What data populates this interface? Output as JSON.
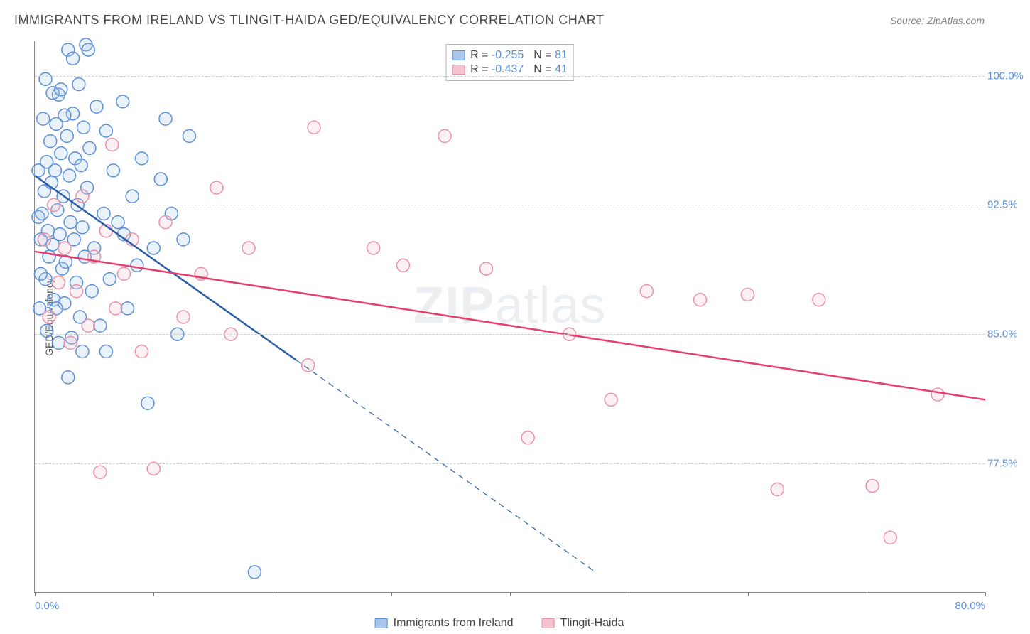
{
  "title": "IMMIGRANTS FROM IRELAND VS TLINGIT-HAIDA GED/EQUIVALENCY CORRELATION CHART",
  "source": "Source: ZipAtlas.com",
  "y_axis_label": "GED/Equivalency",
  "watermark": {
    "bold": "ZIP",
    "thin": "atlas"
  },
  "chart": {
    "type": "scatter",
    "xlim": [
      0,
      80
    ],
    "ylim": [
      70,
      102
    ],
    "x_ticks": [
      0,
      10,
      20,
      30,
      40,
      50,
      60,
      70,
      80
    ],
    "x_tick_labels": {
      "0": "0.0%",
      "80": "80.0%"
    },
    "y_ticks": [
      77.5,
      85.0,
      92.5,
      100.0
    ],
    "y_tick_labels": [
      "77.5%",
      "85.0%",
      "92.5%",
      "100.0%"
    ],
    "grid_color": "#cccccc",
    "background_color": "#ffffff",
    "marker_radius": 9,
    "marker_stroke_width": 1.5,
    "marker_fill_opacity": 0.25,
    "line_width": 2.5,
    "series": [
      {
        "id": "ireland",
        "label": "Immigrants from Ireland",
        "color_stroke": "#5b8fd6",
        "color_fill": "#a9c6ea",
        "line_color": "#2a5fa8",
        "R": "-0.255",
        "N": "81",
        "trend": {
          "x1": 0,
          "y1": 94.2,
          "x2": 22,
          "y2": 83.5,
          "x2_ext": 47,
          "y2_ext": 71.3
        },
        "points": [
          [
            0.3,
            91.8
          ],
          [
            0.5,
            90.5
          ],
          [
            0.6,
            92.0
          ],
          [
            0.8,
            93.3
          ],
          [
            0.9,
            88.2
          ],
          [
            1.0,
            95.0
          ],
          [
            1.1,
            91.0
          ],
          [
            1.2,
            89.5
          ],
          [
            1.3,
            96.2
          ],
          [
            1.4,
            93.8
          ],
          [
            1.5,
            90.2
          ],
          [
            1.6,
            87.0
          ],
          [
            1.7,
            94.5
          ],
          [
            1.8,
            97.2
          ],
          [
            1.9,
            92.2
          ],
          [
            2.0,
            98.9
          ],
          [
            2.1,
            90.8
          ],
          [
            2.2,
            95.5
          ],
          [
            2.3,
            88.8
          ],
          [
            2.4,
            93.0
          ],
          [
            2.5,
            86.8
          ],
          [
            2.6,
            89.2
          ],
          [
            2.7,
            96.5
          ],
          [
            2.8,
            101.5
          ],
          [
            2.9,
            94.2
          ],
          [
            3.0,
            91.5
          ],
          [
            3.1,
            84.8
          ],
          [
            3.2,
            97.8
          ],
          [
            3.3,
            90.5
          ],
          [
            3.4,
            95.2
          ],
          [
            3.5,
            88.0
          ],
          [
            3.6,
            92.5
          ],
          [
            3.7,
            99.5
          ],
          [
            3.8,
            86.0
          ],
          [
            3.9,
            94.8
          ],
          [
            4.0,
            91.2
          ],
          [
            4.1,
            97.0
          ],
          [
            4.2,
            89.5
          ],
          [
            4.3,
            101.8
          ],
          [
            4.4,
            93.5
          ],
          [
            4.6,
            95.8
          ],
          [
            4.8,
            87.5
          ],
          [
            5.0,
            90.0
          ],
          [
            5.2,
            98.2
          ],
          [
            5.5,
            85.5
          ],
          [
            5.8,
            92.0
          ],
          [
            6.0,
            96.8
          ],
          [
            6.3,
            88.2
          ],
          [
            6.6,
            94.5
          ],
          [
            7.0,
            91.5
          ],
          [
            7.4,
            98.5
          ],
          [
            7.8,
            86.5
          ],
          [
            8.2,
            93.0
          ],
          [
            8.6,
            89.0
          ],
          [
            9.0,
            95.2
          ],
          [
            9.5,
            81.0
          ],
          [
            10.0,
            90.0
          ],
          [
            10.6,
            94.0
          ],
          [
            11.0,
            97.5
          ],
          [
            11.5,
            92.0
          ],
          [
            12.0,
            85.0
          ],
          [
            12.5,
            90.5
          ],
          [
            13.0,
            96.5
          ],
          [
            2.0,
            84.5
          ],
          [
            2.8,
            82.5
          ],
          [
            0.4,
            86.5
          ],
          [
            1.0,
            85.2
          ],
          [
            3.2,
            101.0
          ],
          [
            4.5,
            101.5
          ],
          [
            0.7,
            97.5
          ],
          [
            1.5,
            99.0
          ],
          [
            0.3,
            94.5
          ],
          [
            2.2,
            99.2
          ],
          [
            0.5,
            88.5
          ],
          [
            1.8,
            86.5
          ],
          [
            0.9,
            99.8
          ],
          [
            6.0,
            84.0
          ],
          [
            7.5,
            90.8
          ],
          [
            4.0,
            84.0
          ],
          [
            2.5,
            97.7
          ],
          [
            18.5,
            71.2
          ]
        ]
      },
      {
        "id": "tlingit",
        "label": "Tlingit-Haida",
        "color_stroke": "#e891a8",
        "color_fill": "#f5c2d0",
        "line_color": "#e63e6d",
        "R": "-0.437",
        "N": "41",
        "trend": {
          "x1": 0,
          "y1": 89.8,
          "x2": 80,
          "y2": 81.2
        },
        "points": [
          [
            0.8,
            90.5
          ],
          [
            1.2,
            86.0
          ],
          [
            1.6,
            92.5
          ],
          [
            2.0,
            88.0
          ],
          [
            2.5,
            90.0
          ],
          [
            3.0,
            84.5
          ],
          [
            3.5,
            87.5
          ],
          [
            4.0,
            93.0
          ],
          [
            4.5,
            85.5
          ],
          [
            5.0,
            89.5
          ],
          [
            5.5,
            77.0
          ],
          [
            6.0,
            91.0
          ],
          [
            6.8,
            86.5
          ],
          [
            7.5,
            88.5
          ],
          [
            8.2,
            90.5
          ],
          [
            9.0,
            84.0
          ],
          [
            10.0,
            77.2
          ],
          [
            11.0,
            91.5
          ],
          [
            12.5,
            86.0
          ],
          [
            14.0,
            88.5
          ],
          [
            15.3,
            93.5
          ],
          [
            16.5,
            85.0
          ],
          [
            18.0,
            90.0
          ],
          [
            6.5,
            96.0
          ],
          [
            23.5,
            97.0
          ],
          [
            23.0,
            83.2
          ],
          [
            28.5,
            90.0
          ],
          [
            31.0,
            89.0
          ],
          [
            34.5,
            96.5
          ],
          [
            38.0,
            88.8
          ],
          [
            41.5,
            79.0
          ],
          [
            45.0,
            85.0
          ],
          [
            48.5,
            81.2
          ],
          [
            51.5,
            87.5
          ],
          [
            56.0,
            87.0
          ],
          [
            60.0,
            87.3
          ],
          [
            62.5,
            76.0
          ],
          [
            66.0,
            87.0
          ],
          [
            70.5,
            76.2
          ],
          [
            72.0,
            73.2
          ],
          [
            76.0,
            81.5
          ]
        ]
      }
    ]
  },
  "legend_top": {
    "R_label": "R =",
    "N_label": "N ="
  }
}
